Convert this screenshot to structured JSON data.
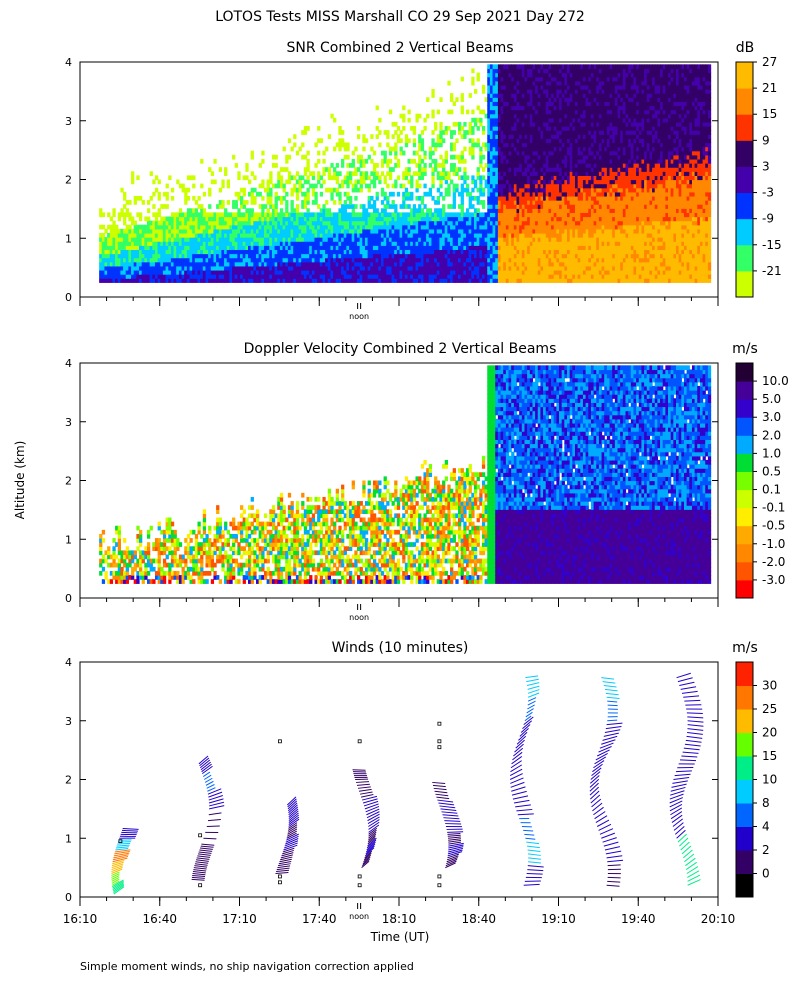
{
  "figure": {
    "title": "LOTOS Tests MISS Marshall CO  29 Sep 2021 Day 272",
    "ylabel": "Altitude (km)",
    "xlabel": "Time (UT)",
    "footnote": "Simple moment winds, no ship navigation correction applied",
    "noon_label": "noon",
    "x_tick_labels": [
      "16:10",
      "16:40",
      "17:10",
      "17:40",
      "18:10",
      "18:40",
      "19:10",
      "19:40",
      "20:10"
    ],
    "x_range_hours": [
      16.1667,
      20.1667
    ],
    "noon_hour": 17.9167
  },
  "chart_data": [
    {
      "type": "heatmap",
      "title": "SNR Combined 2 Vertical Beams",
      "unit": "dB",
      "ylim": [
        0,
        4
      ],
      "y_ticks": [
        "0",
        "1",
        "2",
        "3",
        "4"
      ],
      "colorbar": {
        "colors": [
          "#ccff00",
          "#33ff66",
          "#00ccff",
          "#0033ff",
          "#4400aa",
          "#330066",
          "#ff3300",
          "#ff8800",
          "#ffbb00"
        ],
        "labels": [
          "-21",
          "-15",
          "-9",
          "-3",
          "3",
          "9",
          "15",
          "21",
          "27"
        ]
      },
      "regime_change_hour": 18.72
    },
    {
      "type": "heatmap",
      "title": "Doppler Velocity Combined 2 Vertical Beams",
      "unit": "m/s",
      "ylim": [
        0,
        4
      ],
      "y_ticks": [
        "0",
        "1",
        "2",
        "3",
        "4"
      ],
      "colorbar": {
        "colors": [
          "#ff0000",
          "#ff5500",
          "#ff8800",
          "#ffaa00",
          "#ffee00",
          "#ccff00",
          "#77ff00",
          "#00dd33",
          "#00aaff",
          "#0055ff",
          "#3300cc",
          "#440099",
          "#220033"
        ],
        "labels": [
          "-3.0",
          "-2.0",
          "-1.0",
          "-0.5",
          "-0.1",
          "0.1",
          "0.5",
          "1.0",
          "2.0",
          "3.0",
          "5.0",
          "10.0"
        ]
      },
      "regime_change_hour": 18.72
    },
    {
      "type": "scatter",
      "title": "Winds (10 minutes)",
      "unit": "m/s",
      "ylim": [
        0,
        4
      ],
      "y_ticks": [
        "0",
        "1",
        "2",
        "3",
        "4"
      ],
      "colorbar": {
        "colors": [
          "#000000",
          "#330066",
          "#2200cc",
          "#0066ff",
          "#00ccff",
          "#00ee88",
          "#66ff00",
          "#ffbb00",
          "#ff7700",
          "#ff2200"
        ],
        "labels": [
          "0",
          "2",
          "4",
          "8",
          "10",
          "15",
          "20",
          "25",
          "30"
        ]
      },
      "profiles": [
        {
          "time": 16.42,
          "alts": [
            0.05,
            0.2,
            0.4,
            0.6,
            0.8,
            1.0,
            1.2
          ],
          "speed_class": [
            5,
            6,
            7,
            8,
            4,
            2,
            1
          ]
        },
        {
          "time": 16.92,
          "alts": [
            0.3,
            0.5,
            0.7,
            0.9,
            1.5,
            1.8,
            2.1,
            2.3
          ],
          "speed_class": [
            1,
            1,
            1,
            1,
            2,
            3,
            2,
            1
          ]
        },
        {
          "time": 17.42,
          "alts": [
            0.4,
            0.6,
            0.8,
            1.0,
            1.2,
            1.4,
            1.6
          ],
          "speed_class": [
            1,
            1,
            2,
            1,
            2,
            2,
            1
          ]
        },
        {
          "time": 17.92,
          "alts": [
            0.5,
            0.7,
            0.9,
            1.1,
            1.4,
            1.7,
            2.0,
            2.2
          ],
          "speed_class": [
            1,
            2,
            1,
            2,
            2,
            1,
            1,
            2
          ]
        },
        {
          "time": 18.42,
          "alts": [
            0.5,
            0.7,
            0.9,
            1.1,
            1.4,
            1.7,
            2.0
          ],
          "speed_class": [
            1,
            2,
            1,
            2,
            2,
            1,
            2
          ]
        },
        {
          "time": 18.92,
          "alts": [
            0.2,
            0.6,
            1.0,
            1.4,
            1.8,
            2.2,
            2.6,
            3.0,
            3.4,
            3.8
          ],
          "speed_class": [
            2,
            4,
            3,
            2,
            2,
            2,
            2,
            3,
            4,
            3
          ]
        },
        {
          "time": 19.42,
          "alts": [
            0.2,
            0.6,
            1.0,
            1.4,
            1.8,
            2.2,
            2.6,
            3.0,
            3.4,
            3.8
          ],
          "speed_class": [
            1,
            2,
            2,
            2,
            2,
            2,
            2,
            3,
            4,
            4
          ]
        },
        {
          "time": 19.92,
          "alts": [
            0.2,
            0.6,
            1.0,
            1.4,
            1.8,
            2.2,
            2.6,
            3.0,
            3.4,
            3.8
          ],
          "speed_class": [
            5,
            5,
            2,
            2,
            2,
            2,
            2,
            2,
            2,
            2
          ]
        }
      ],
      "markers": [
        {
          "time": 16.42,
          "alt": 0.95
        },
        {
          "time": 16.92,
          "alt": 1.05
        },
        {
          "time": 16.92,
          "alt": 0.2
        },
        {
          "time": 17.42,
          "alt": 2.65
        },
        {
          "time": 17.42,
          "alt": 0.35
        },
        {
          "time": 17.42,
          "alt": 0.25
        },
        {
          "time": 17.92,
          "alt": 2.65
        },
        {
          "time": 17.92,
          "alt": 0.35
        },
        {
          "time": 17.92,
          "alt": 0.2
        },
        {
          "time": 18.42,
          "alt": 2.95
        },
        {
          "time": 18.42,
          "alt": 2.65
        },
        {
          "time": 18.42,
          "alt": 2.55
        },
        {
          "time": 18.42,
          "alt": 0.35
        },
        {
          "time": 18.42,
          "alt": 0.2
        }
      ]
    }
  ]
}
